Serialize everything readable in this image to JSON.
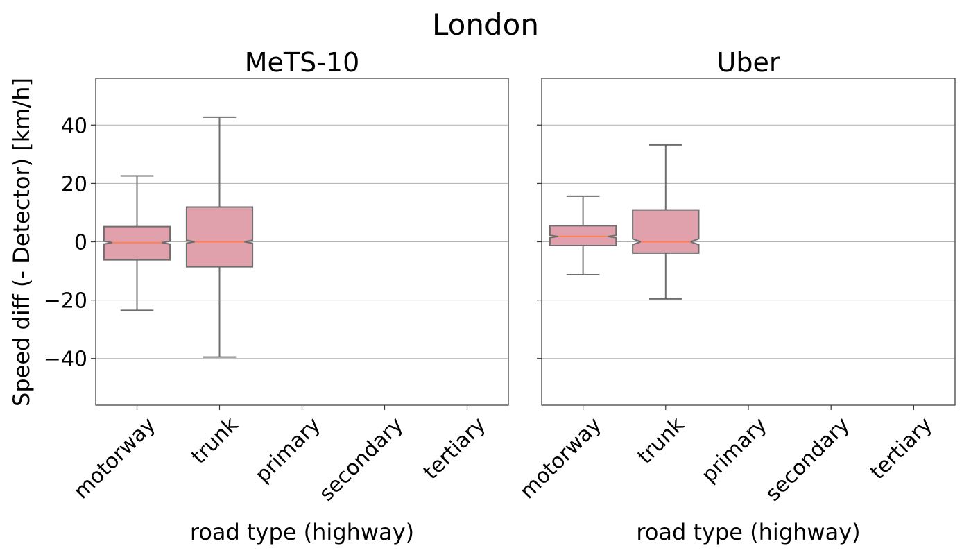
{
  "chart_data": {
    "type": "box",
    "title": "London",
    "ylabel": "Speed diff (- Detector) [km/h]",
    "ylim": [
      -56,
      56
    ],
    "yticks": [
      -40,
      -20,
      0,
      20,
      40
    ],
    "grid": "y",
    "colors": {
      "box_fill": "#e0a0ac",
      "box_edge": "#6e6e6e",
      "median": "#ff7f50",
      "grid": "#b0b0b0",
      "frame": "#333333"
    },
    "panels": [
      {
        "title": "MeTS-10",
        "xlabel": "road type (highway)",
        "categories": [
          "motorway",
          "trunk",
          "primary",
          "secondary",
          "tertiary"
        ],
        "boxes": [
          {
            "category": "motorway",
            "whisker_low": -23.5,
            "q1": -6.2,
            "median": -0.3,
            "q3": 5.2,
            "whisker_high": 22.6,
            "notch_low": -0.8,
            "notch_high": 0.2
          },
          {
            "category": "trunk",
            "whisker_low": -39.5,
            "q1": -8.6,
            "median": 0.0,
            "q3": 11.9,
            "whisker_high": 42.7,
            "notch_low": -0.5,
            "notch_high": 0.5
          }
        ]
      },
      {
        "title": "Uber",
        "xlabel": "road type (highway)",
        "categories": [
          "motorway",
          "trunk",
          "primary",
          "secondary",
          "tertiary"
        ],
        "boxes": [
          {
            "category": "motorway",
            "whisker_low": -11.3,
            "q1": -1.3,
            "median": 1.8,
            "q3": 5.5,
            "whisker_high": 15.6,
            "notch_low": 1.4,
            "notch_high": 2.2
          },
          {
            "category": "trunk",
            "whisker_low": -19.6,
            "q1": -3.9,
            "median": 0.0,
            "q3": 10.9,
            "whisker_high": 33.2,
            "notch_low": -1.0,
            "notch_high": 1.0
          }
        ]
      }
    ]
  }
}
